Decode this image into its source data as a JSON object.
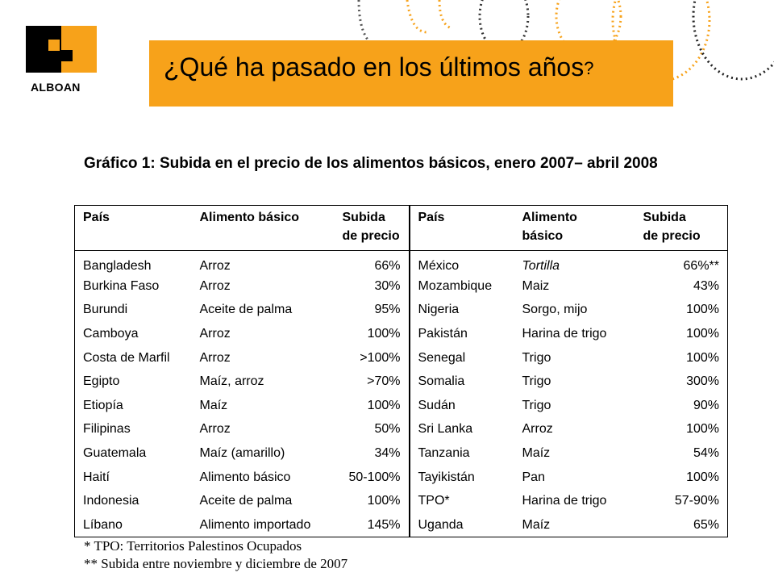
{
  "brand": {
    "name": "ALBOAN"
  },
  "slide_title": {
    "text": "¿Qué ha pasado en los últimos años",
    "question_mark": "?"
  },
  "chart_title": "Gráfico 1: Subida en el precio de los alimentos básicos, enero 2007– abril 2008",
  "table": {
    "headers": {
      "country": "País",
      "food": "Alimento básico",
      "food_right_1": "Alimento",
      "food_right_2": "básico",
      "rise_1": "Subida",
      "rise_2": "de precio"
    },
    "left_rows": [
      {
        "country": "Bangladesh",
        "food": "Arroz",
        "rise": "66%"
      },
      {
        "country": "Burkina Faso",
        "food": "Arroz",
        "rise": "30%"
      },
      {
        "country": "Burundi",
        "food": "Aceite de palma",
        "rise": "95%"
      },
      {
        "country": "Camboya",
        "food": "Arroz",
        "rise": "100%"
      },
      {
        "country": "Costa de Marfil",
        "food": "Arroz",
        "rise": ">100%"
      },
      {
        "country": "Egipto",
        "food": "Maíz, arroz",
        "rise": ">70%"
      },
      {
        "country": "Etiopía",
        "food": "Maíz",
        "rise": "100%"
      },
      {
        "country": "Filipinas",
        "food": "Arroz",
        "rise": "50%"
      },
      {
        "country": "Guatemala",
        "food": "Maíz (amarillo)",
        "rise": "34%"
      },
      {
        "country": "Haití",
        "food": "Alimento básico",
        "rise": "50-100%"
      },
      {
        "country": "Indonesia",
        "food": "Aceite de palma",
        "rise": "100%"
      },
      {
        "country": "Líbano",
        "food": "Alimento importado",
        "rise": "145%"
      }
    ],
    "right_rows": [
      {
        "country": "México",
        "food": "Tortilla",
        "rise": "66%**"
      },
      {
        "country": "Mozambique",
        "food": "Maiz",
        "rise": "43%"
      },
      {
        "country": "Nigeria",
        "food": "Sorgo, mijo",
        "rise": "100%"
      },
      {
        "country": "Pakistán",
        "food": "Harina de trigo",
        "rise": "100%"
      },
      {
        "country": "Senegal",
        "food": "Trigo",
        "rise": "100%"
      },
      {
        "country": "Somalia",
        "food": "Trigo",
        "rise": "300%"
      },
      {
        "country": "Sudán",
        "food": "Trigo",
        "rise": "90%"
      },
      {
        "country": "Sri Lanka",
        "food": "Arroz",
        "rise": "100%"
      },
      {
        "country": "Tanzania",
        "food": "Maíz",
        "rise": "54%"
      },
      {
        "country": "Tayikistán",
        "food": "Pan",
        "rise": "100%"
      },
      {
        "country": "TPO*",
        "food": "Harina de trigo",
        "rise": "57-90%"
      },
      {
        "country": "Uganda",
        "food": "Maíz",
        "rise": "65%"
      }
    ]
  },
  "footnotes": [
    "* TPO: Territorios Palestinos Ocupados",
    "** Subida entre noviembre y diciembre de 2007"
  ],
  "colors": {
    "accent": "#f7a21a",
    "logo_orange": "#f7a21a",
    "logo_dark": "#000000"
  }
}
